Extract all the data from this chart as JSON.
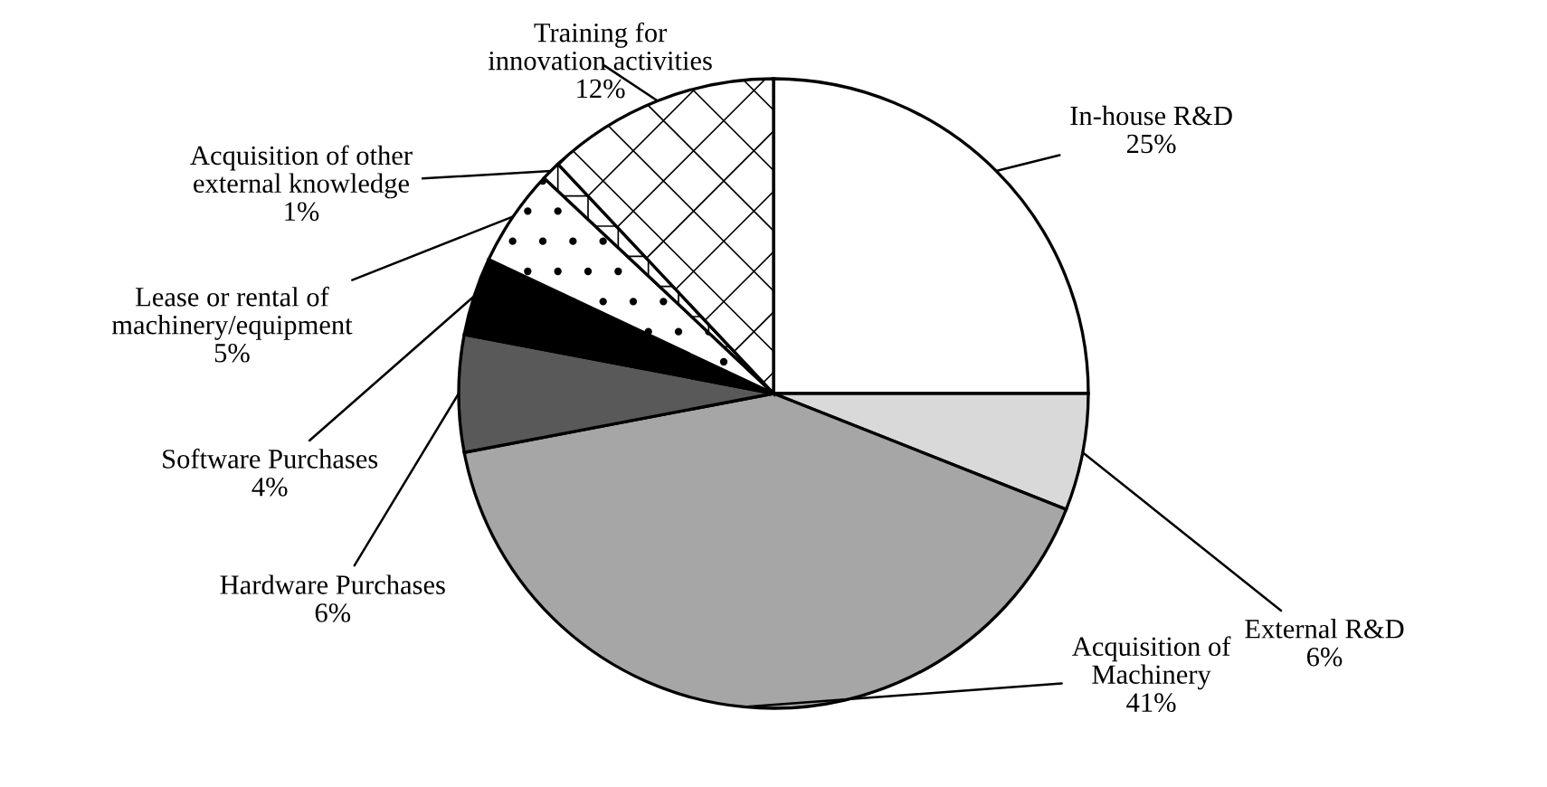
{
  "chart_data": {
    "type": "pie",
    "categories": [
      "In-house R&D",
      "External R&D",
      "Acquisition of\nMachinery",
      "Hardware Purchases",
      "Software Purchases",
      "Lease or rental of\nmachinery/equipment",
      "Acquisition of other\nexternal knowledge",
      "Training for\ninnovation activities"
    ],
    "values": [
      25,
      6,
      41,
      6,
      4,
      5,
      1,
      12
    ],
    "colors": [
      "#ffffff",
      "#d9d9d9",
      "#a6a6a6",
      "#595959",
      "#000000",
      "#ffffff",
      "#ffffff",
      "#ffffff"
    ],
    "value_labels": [
      "25%",
      "6%",
      "41%",
      "6%",
      "4%",
      "5%",
      "1%",
      "12%"
    ],
    "legend": false
  }
}
